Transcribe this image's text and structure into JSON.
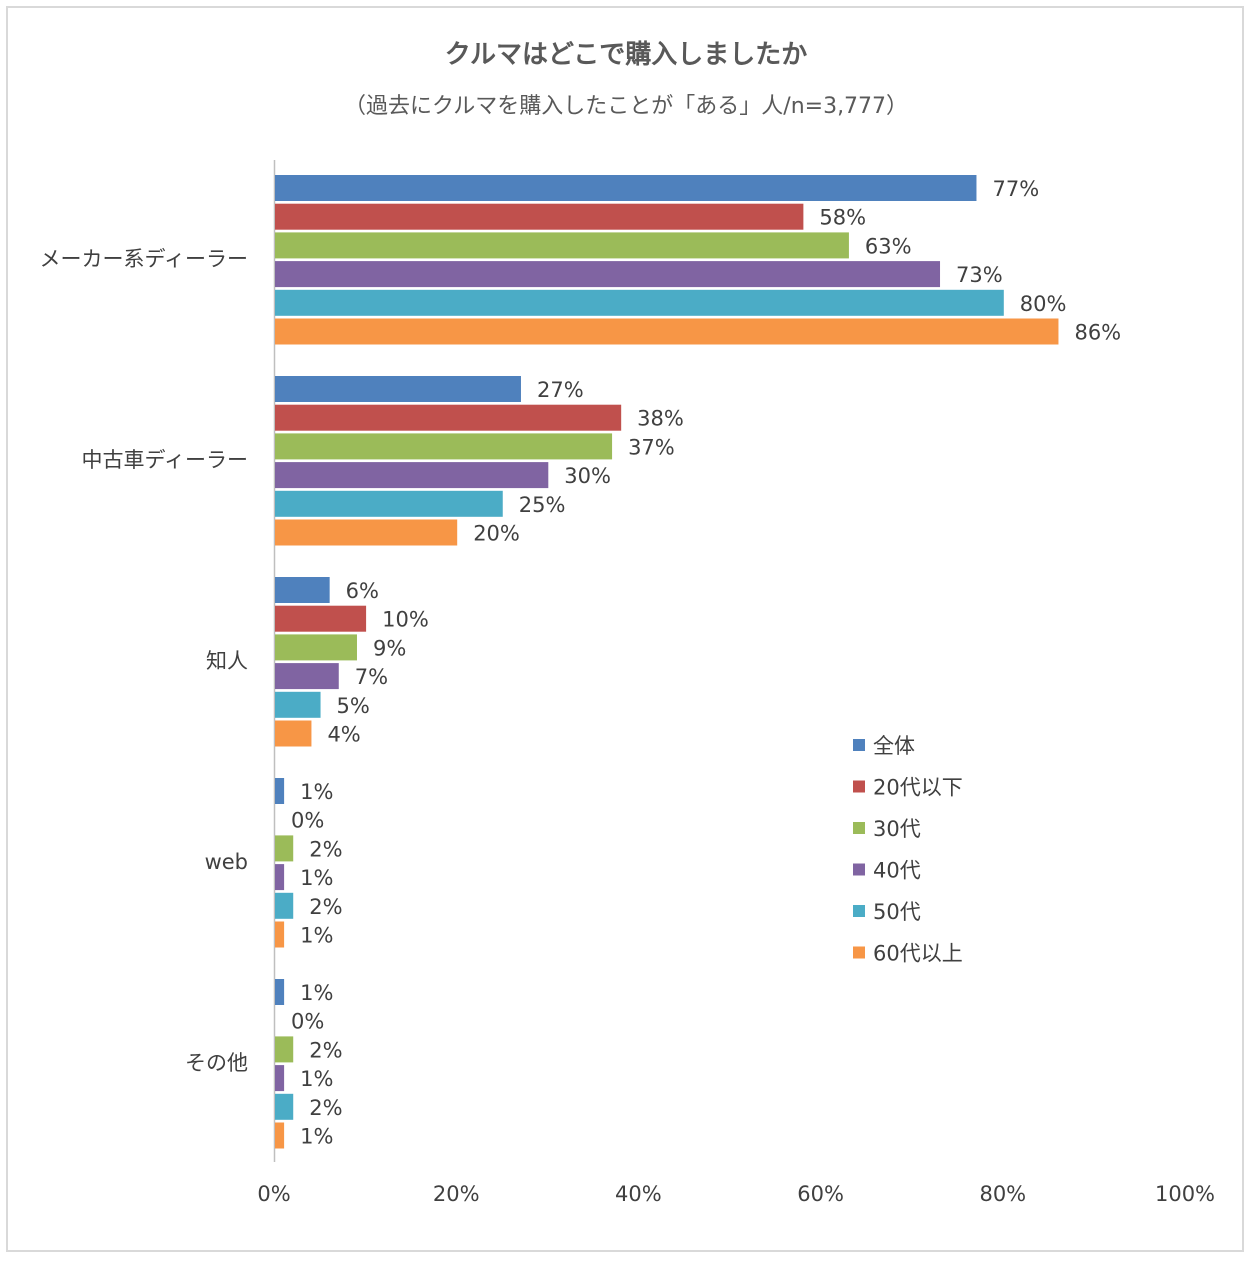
{
  "chart_data": {
    "type": "bar",
    "orientation": "horizontal",
    "title": "クルマはどこで購入しましたか",
    "subtitle": "（過去にクルマを購入したことが「ある」人/n=3,777）",
    "categories": [
      "メーカー系ディーラー",
      "中古車ディーラー",
      "知人",
      "web",
      "その他"
    ],
    "series": [
      {
        "name": "全体",
        "color": "#4F81BD",
        "values": [
          77,
          27,
          6,
          1,
          1
        ],
        "labels": [
          "77%",
          "27%",
          "6%",
          "1%",
          "1%"
        ]
      },
      {
        "name": "20代以下",
        "color": "#C0504D",
        "values": [
          58,
          38,
          10,
          0,
          0
        ],
        "labels": [
          "58%",
          "38%",
          "10%",
          "0%",
          "0%"
        ]
      },
      {
        "name": "30代",
        "color": "#9BBB59",
        "values": [
          63,
          37,
          9,
          2,
          2
        ],
        "labels": [
          "63%",
          "37%",
          "9%",
          "2%",
          "2%"
        ]
      },
      {
        "name": "40代",
        "color": "#8064A2",
        "values": [
          73,
          30,
          7,
          1,
          1
        ],
        "labels": [
          "73%",
          "30%",
          "7%",
          "1%",
          "1%"
        ]
      },
      {
        "name": "50代",
        "color": "#4BACC6",
        "values": [
          80,
          25,
          5,
          2,
          2
        ],
        "labels": [
          "80%",
          "25%",
          "5%",
          "2%",
          "2%"
        ]
      },
      {
        "name": "60代以上",
        "color": "#F79646",
        "values": [
          86,
          20,
          4,
          1,
          1
        ],
        "labels": [
          "86%",
          "20%",
          "4%",
          "1%",
          "1%"
        ]
      }
    ],
    "xlim": [
      0,
      100
    ],
    "xticks": [
      0,
      20,
      40,
      60,
      80,
      100
    ],
    "xtick_labels": [
      "0%",
      "20%",
      "40%",
      "60%",
      "80%",
      "100%"
    ],
    "legend_position": "right",
    "grid": false
  }
}
